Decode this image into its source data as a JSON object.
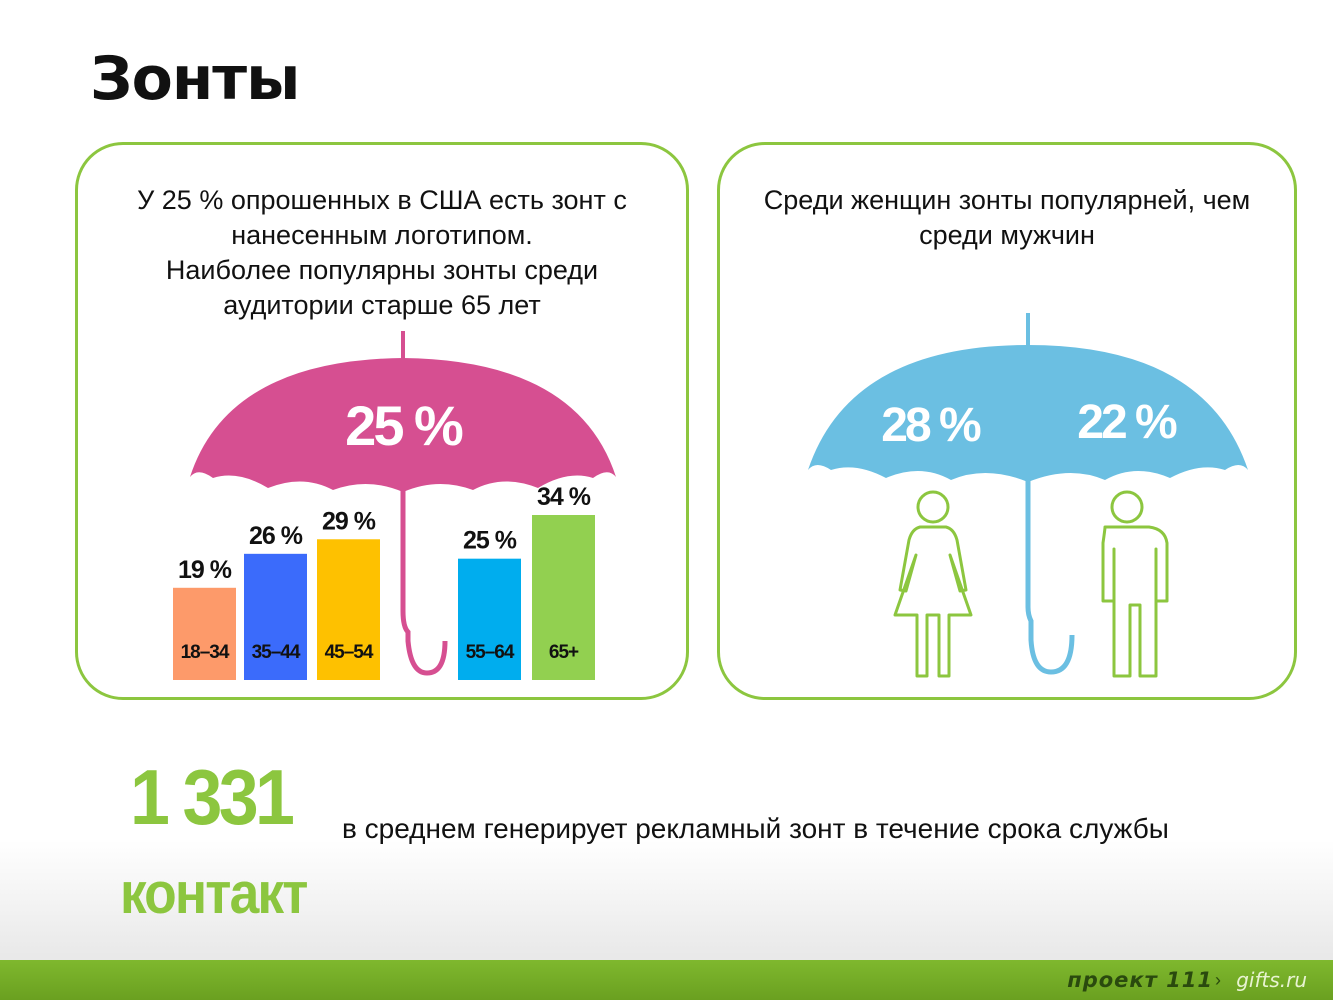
{
  "title": "Зонты",
  "panel_left": {
    "text": "У 25 % опрошенных в США есть зонт с\nнанесенным логотипом.\nНаиболее популярны зонты среди\nаудитории старше 65 лет",
    "umbrella_label": "25 %",
    "umbrella_color": "#d64f91"
  },
  "panel_right": {
    "text": "Среди женщин зонты популярней, чем\nсреди мужчин",
    "women_label": "28 %",
    "men_label": "22 %",
    "umbrella_color": "#6bbfe2",
    "figure_color": "#8cc63f"
  },
  "chart_data": {
    "type": "bar",
    "categories": [
      "18–34",
      "35–44",
      "45–54",
      "55–64",
      "65+"
    ],
    "values": [
      19,
      26,
      29,
      25,
      34
    ],
    "value_labels": [
      "19 %",
      "26 %",
      "29 %",
      "25 %",
      "34 %"
    ],
    "colors": [
      "#fd9a6a",
      "#3b6bfb",
      "#fec100",
      "#00adee",
      "#92d050"
    ],
    "title": "",
    "xlabel": "",
    "ylabel": ""
  },
  "stat": {
    "number": "1 331",
    "unit": "контакт",
    "caption": "в среднем генерирует рекламный зонт в течение срока службы"
  },
  "footer": {
    "brand": "проект 111",
    "arrow": "›",
    "site": "gifts.ru"
  },
  "colors": {
    "accent_green": "#8cc63f",
    "footer_green": "#7fb82e"
  }
}
